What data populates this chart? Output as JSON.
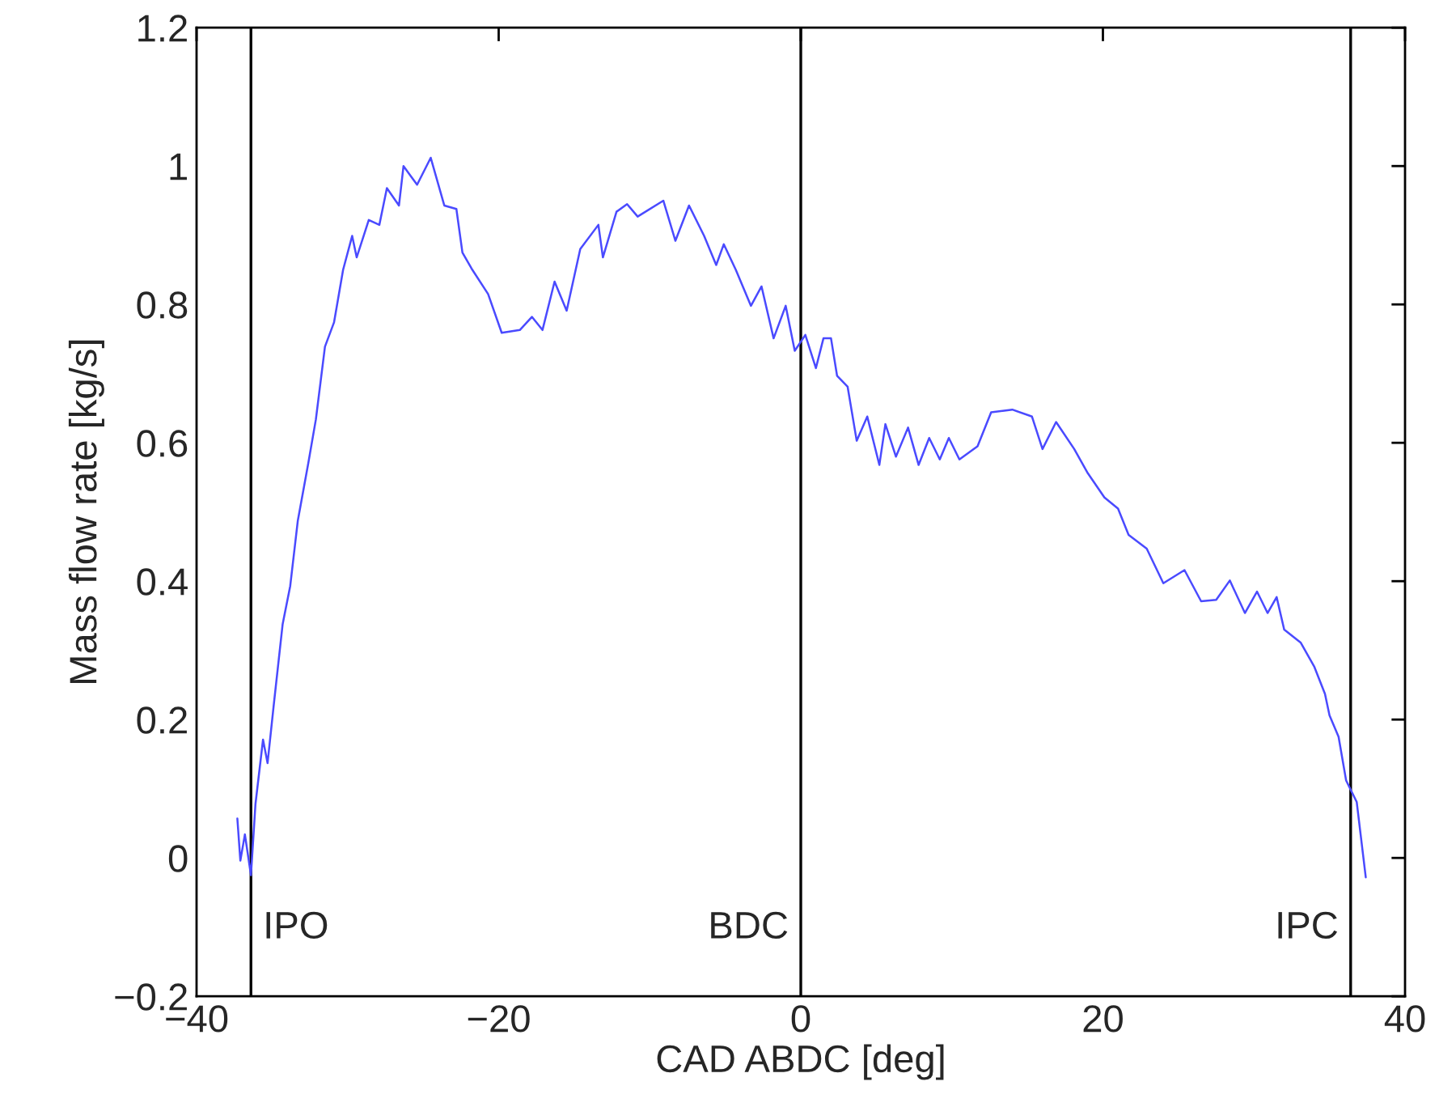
{
  "chart_data": {
    "type": "line",
    "xlabel": "CAD ABDC [deg]",
    "ylabel": "Mass flow rate [kg/s]",
    "x": [
      -37.3,
      -37.1,
      -36.8,
      -36.4,
      -36.1,
      -35.6,
      -35.3,
      -34.9,
      -34.3,
      -33.8,
      -33.3,
      -32.6,
      -32.1,
      -31.5,
      -30.9,
      -30.3,
      -29.7,
      -29.4,
      -28.6,
      -27.9,
      -27.4,
      -26.6,
      -26.3,
      -25.4,
      -24.5,
      -23.6,
      -22.8,
      -22.4,
      -21.8,
      -20.7,
      -19.8,
      -18.6,
      -17.8,
      -17.1,
      -16.3,
      -15.5,
      -14.6,
      -13.4,
      -13.1,
      -12.2,
      -11.5,
      -10.8,
      -9.1,
      -8.3,
      -7.4,
      -6.4,
      -5.6,
      -5.1,
      -4.3,
      -3.3,
      -2.6,
      -1.8,
      -1.0,
      -0.4,
      0.3,
      1.0,
      1.5,
      2.0,
      2.4,
      3.1,
      3.7,
      4.4,
      5.2,
      5.6,
      6.3,
      7.1,
      7.8,
      8.5,
      9.2,
      9.8,
      10.5,
      11.7,
      12.6,
      14.0,
      15.3,
      16.0,
      16.9,
      18.1,
      19.0,
      20.1,
      21.0,
      21.7,
      22.9,
      24.0,
      25.4,
      26.5,
      27.5,
      28.4,
      29.4,
      30.2,
      30.9,
      31.5,
      32.0,
      33.1,
      34.0,
      34.7,
      35.0,
      35.6,
      36.1,
      36.8,
      37.4
    ],
    "series": [
      {
        "color": "#4a4aff",
        "values": [
          0.057,
          -0.004,
          0.034,
          -0.025,
          0.078,
          0.171,
          0.137,
          0.219,
          0.338,
          0.393,
          0.487,
          0.571,
          0.634,
          0.739,
          0.774,
          0.85,
          0.899,
          0.868,
          0.922,
          0.915,
          0.968,
          0.943,
          1.0,
          0.973,
          1.012,
          0.943,
          0.938,
          0.875,
          0.852,
          0.815,
          0.759,
          0.763,
          0.782,
          0.763,
          0.833,
          0.791,
          0.88,
          0.915,
          0.868,
          0.934,
          0.945,
          0.927,
          0.95,
          0.892,
          0.943,
          0.899,
          0.857,
          0.887,
          0.85,
          0.798,
          0.826,
          0.751,
          0.798,
          0.733,
          0.756,
          0.708,
          0.751,
          0.751,
          0.697,
          0.681,
          0.603,
          0.638,
          0.568,
          0.627,
          0.58,
          0.622,
          0.568,
          0.607,
          0.576,
          0.607,
          0.576,
          0.595,
          0.644,
          0.648,
          0.638,
          0.591,
          0.63,
          0.591,
          0.556,
          0.521,
          0.505,
          0.467,
          0.447,
          0.397,
          0.416,
          0.371,
          0.373,
          0.401,
          0.354,
          0.385,
          0.354,
          0.377,
          0.33,
          0.311,
          0.276,
          0.237,
          0.206,
          0.175,
          0.112,
          0.081,
          -0.028
        ]
      }
    ],
    "xlim": [
      -40,
      40
    ],
    "xticks": [
      {
        "value": -40,
        "label": "−40"
      },
      {
        "value": -20,
        "label": "−20"
      },
      0,
      20,
      40
    ],
    "ylim": [
      -0.2,
      1.2
    ],
    "yticks": [
      {
        "value": -0.2,
        "label": "−0.2"
      },
      0,
      0.2,
      0.4,
      0.6,
      0.8,
      1,
      1.2
    ],
    "ref_lines": [
      {
        "axis": "x",
        "value": -36.4,
        "label": "IPO",
        "color": "#000000"
      },
      {
        "axis": "x",
        "value": 0,
        "label": "BDC",
        "color": "#000000"
      },
      {
        "axis": "x",
        "value": 36.4,
        "label": "IPC",
        "color": "#000000"
      }
    ],
    "grid": false,
    "legend": false,
    "marker": "none",
    "line_style": "solid"
  }
}
